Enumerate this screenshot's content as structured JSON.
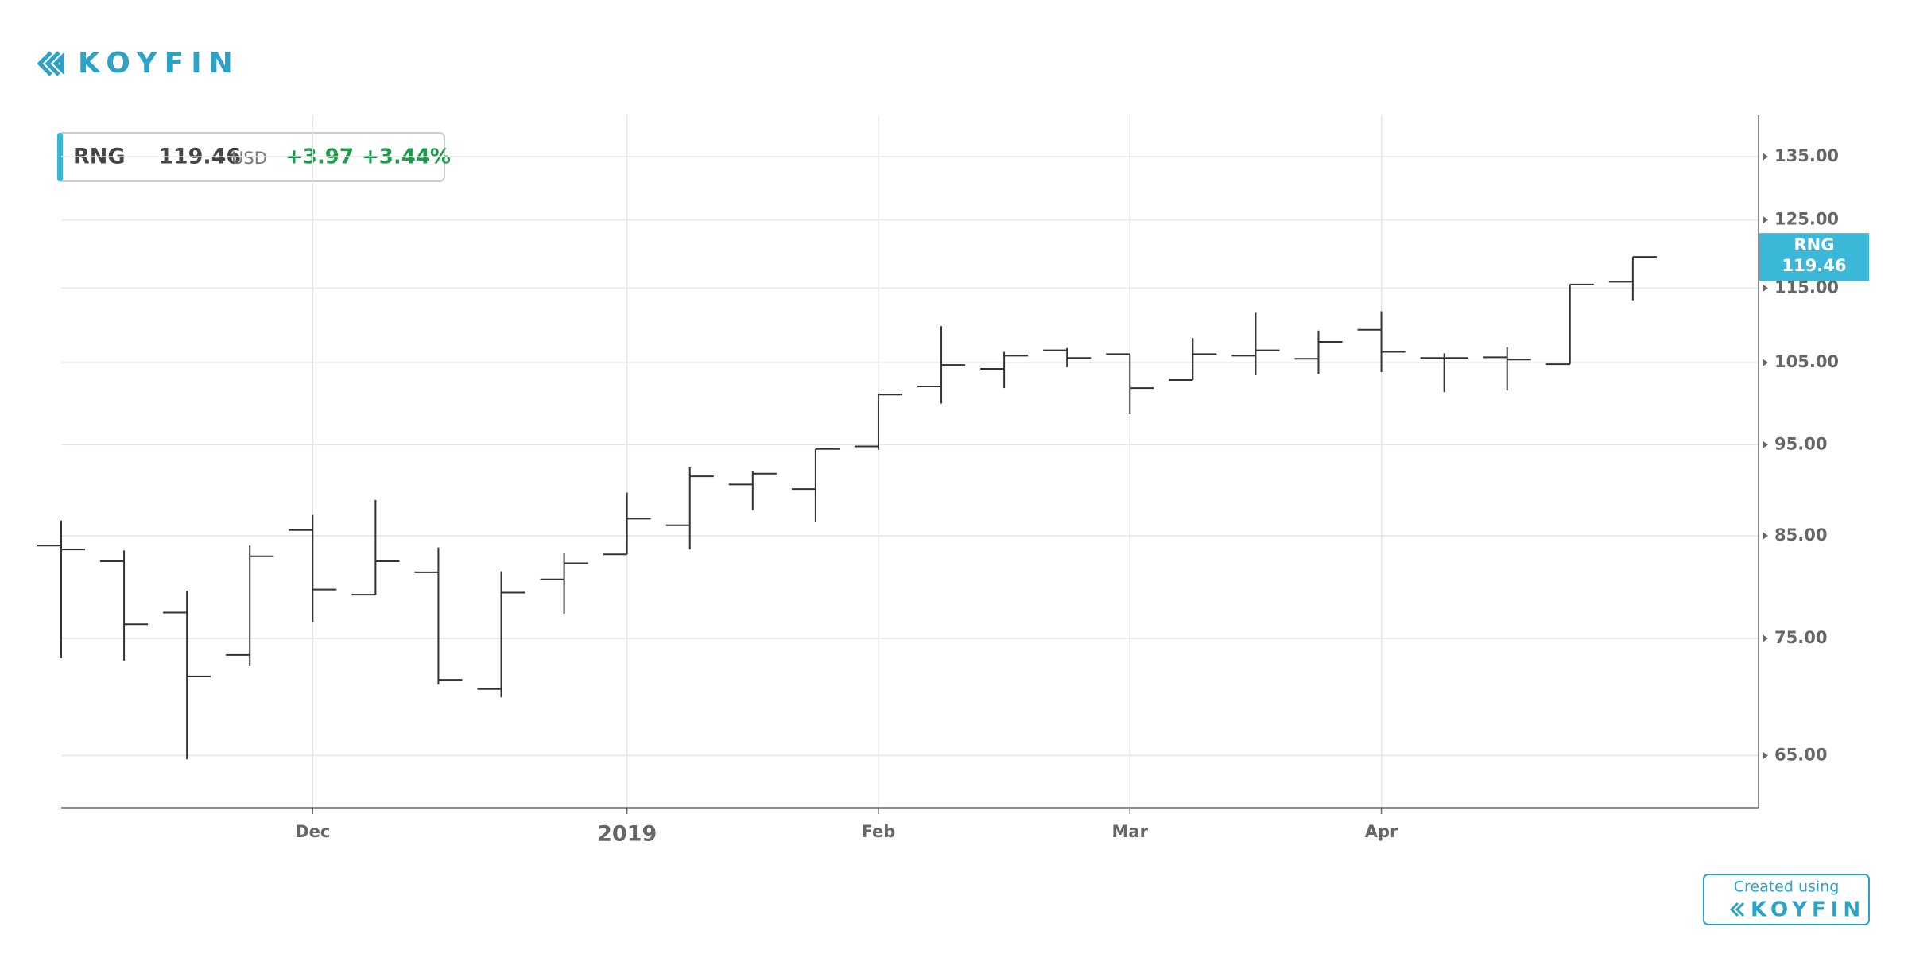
{
  "branding": {
    "logo": "KOYFIN",
    "created_using": "Created using",
    "footer_logo": "KOYFIN"
  },
  "quote": {
    "ticker": "RNG",
    "price": "119.46",
    "currency": "USD",
    "change": "+3.97",
    "change_pct": "+3.44%"
  },
  "chart_data": {
    "type": "ohlc",
    "color": "#333333",
    "log_scale": true,
    "grid": true,
    "categories": [
      null,
      null,
      null,
      null,
      "Dec",
      null,
      null,
      null,
      null,
      "2019",
      null,
      null,
      null,
      "Feb",
      null,
      null,
      null,
      "Mar",
      null,
      null,
      null,
      "Apr",
      null,
      null,
      null,
      null
    ],
    "open": [
      84,
      82.4,
      77.4,
      73.5,
      85.6,
      79.1,
      81.3,
      70.5,
      80.6,
      83.1,
      86.1,
      90.5,
      90.0,
      94.8,
      102.0,
      104.2,
      106.6,
      106.1,
      102.8,
      105.9,
      105.5,
      109.3,
      105.6,
      105.7,
      104.8,
      115.9
    ],
    "high": [
      86.6,
      83.5,
      79.5,
      84.0,
      87.2,
      88.8,
      83.8,
      81.4,
      83.2,
      89.6,
      92.4,
      92.0,
      94.5,
      101.0,
      109.8,
      106.4,
      106.9,
      106.1,
      108.2,
      111.6,
      109.2,
      111.8,
      106.2,
      107.0,
      115.5,
      119.46
    ],
    "low": [
      73.2,
      73.0,
      64.7,
      72.5,
      76.5,
      79.1,
      70.9,
      69.8,
      77.3,
      83.1,
      83.6,
      87.7,
      86.5,
      94.4,
      99.9,
      101.8,
      104.4,
      98.6,
      102.8,
      103.4,
      103.6,
      103.8,
      101.3,
      101.5,
      104.8,
      113.3
    ],
    "close": [
      83.6,
      76.3,
      71.6,
      82.9,
      79.6,
      82.4,
      71.3,
      79.3,
      82.2,
      86.8,
      91.4,
      91.7,
      94.5,
      101.0,
      104.7,
      105.9,
      105.6,
      101.8,
      106.1,
      106.6,
      107.7,
      106.4,
      105.6,
      105.4,
      115.5,
      119.46
    ],
    "ylim": [
      61,
      142
    ],
    "yticks": [
      {
        "value": 65,
        "label": "65.00"
      },
      {
        "value": 75,
        "label": "75.00"
      },
      {
        "value": 85,
        "label": "85.00"
      },
      {
        "value": 95,
        "label": "95.00"
      },
      {
        "value": 105,
        "label": "105.00"
      },
      {
        "value": 115,
        "label": "115.00"
      },
      {
        "value": 125,
        "label": "125.00"
      },
      {
        "value": 135,
        "label": "135.00"
      }
    ]
  }
}
